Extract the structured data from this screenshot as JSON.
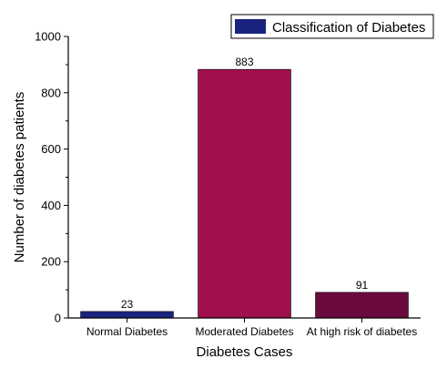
{
  "chart_data": {
    "type": "bar",
    "categories": [
      "Normal Diabetes",
      "Moderated Diabetes",
      "At high risk of diabetes"
    ],
    "series": [
      {
        "name": "Classification of Diabetes",
        "values": [
          23,
          883,
          91
        ],
        "colors": [
          "#1a237e",
          "#a0104e",
          "#6b0a3c"
        ]
      }
    ],
    "data_labels": [
      "23",
      "883",
      "91"
    ],
    "xlabel": "Diabetes Cases",
    "ylabel": "Number of diabetes patients",
    "ylim": [
      0,
      1000
    ],
    "yticks": [
      0,
      200,
      400,
      600,
      800,
      1000
    ],
    "grid": false,
    "legend": "top-right"
  }
}
